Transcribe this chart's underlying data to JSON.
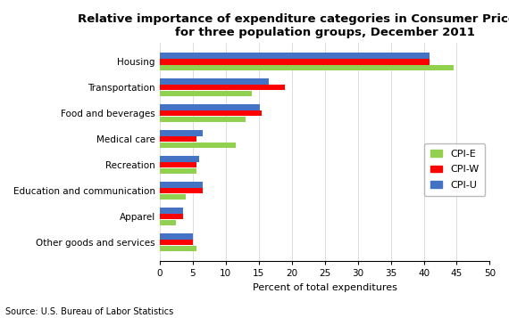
{
  "title": "Relative importance of expenditure categories in Consumer Price Indexes\nfor three population groups, December 2011",
  "categories": [
    "Housing",
    "Transportation",
    "Food and beverages",
    "Medical care",
    "Recreation",
    "Education and communication",
    "Apparel",
    "Other goods and services"
  ],
  "series": {
    "CPI-E": [
      44.5,
      14.0,
      13.0,
      11.5,
      5.5,
      4.0,
      2.5,
      5.5
    ],
    "CPI-W": [
      40.9,
      19.0,
      15.5,
      5.5,
      5.5,
      6.5,
      3.5,
      5.0
    ],
    "CPI-U": [
      40.9,
      16.5,
      15.2,
      6.5,
      6.0,
      6.5,
      3.5,
      5.0
    ]
  },
  "colors": {
    "CPI-E": "#92d050",
    "CPI-W": "#ff0000",
    "CPI-U": "#4472c4"
  },
  "xlabel": "Percent of total expenditures",
  "source": "Source: U.S. Bureau of Labor Statistics",
  "xlim": [
    0,
    50
  ],
  "xticks": [
    0,
    5,
    10,
    15,
    20,
    25,
    30,
    35,
    40,
    45,
    50
  ],
  "background_color": "#ffffff",
  "title_fontsize": 9.5,
  "legend_fontsize": 8,
  "axis_fontsize": 8,
  "tick_fontsize": 7.5
}
